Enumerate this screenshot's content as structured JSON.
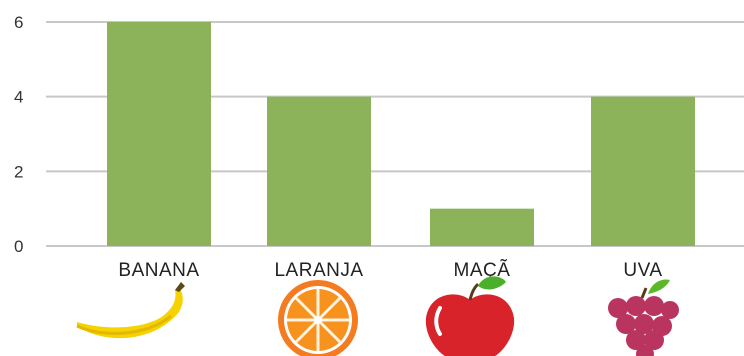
{
  "chart_data": {
    "type": "bar",
    "categories": [
      "BANANA",
      "LARANJA",
      "MAÇÃ",
      "UVA"
    ],
    "values": [
      6,
      4,
      1,
      4
    ],
    "y_ticks": [
      0,
      2,
      4,
      6
    ],
    "ylim": [
      0,
      6
    ],
    "grid": true,
    "bar_color": "#8db35a",
    "grid_color": "#c8c8c8",
    "category_icons": [
      "banana-icon",
      "orange-icon",
      "apple-icon",
      "grapes-icon"
    ]
  }
}
